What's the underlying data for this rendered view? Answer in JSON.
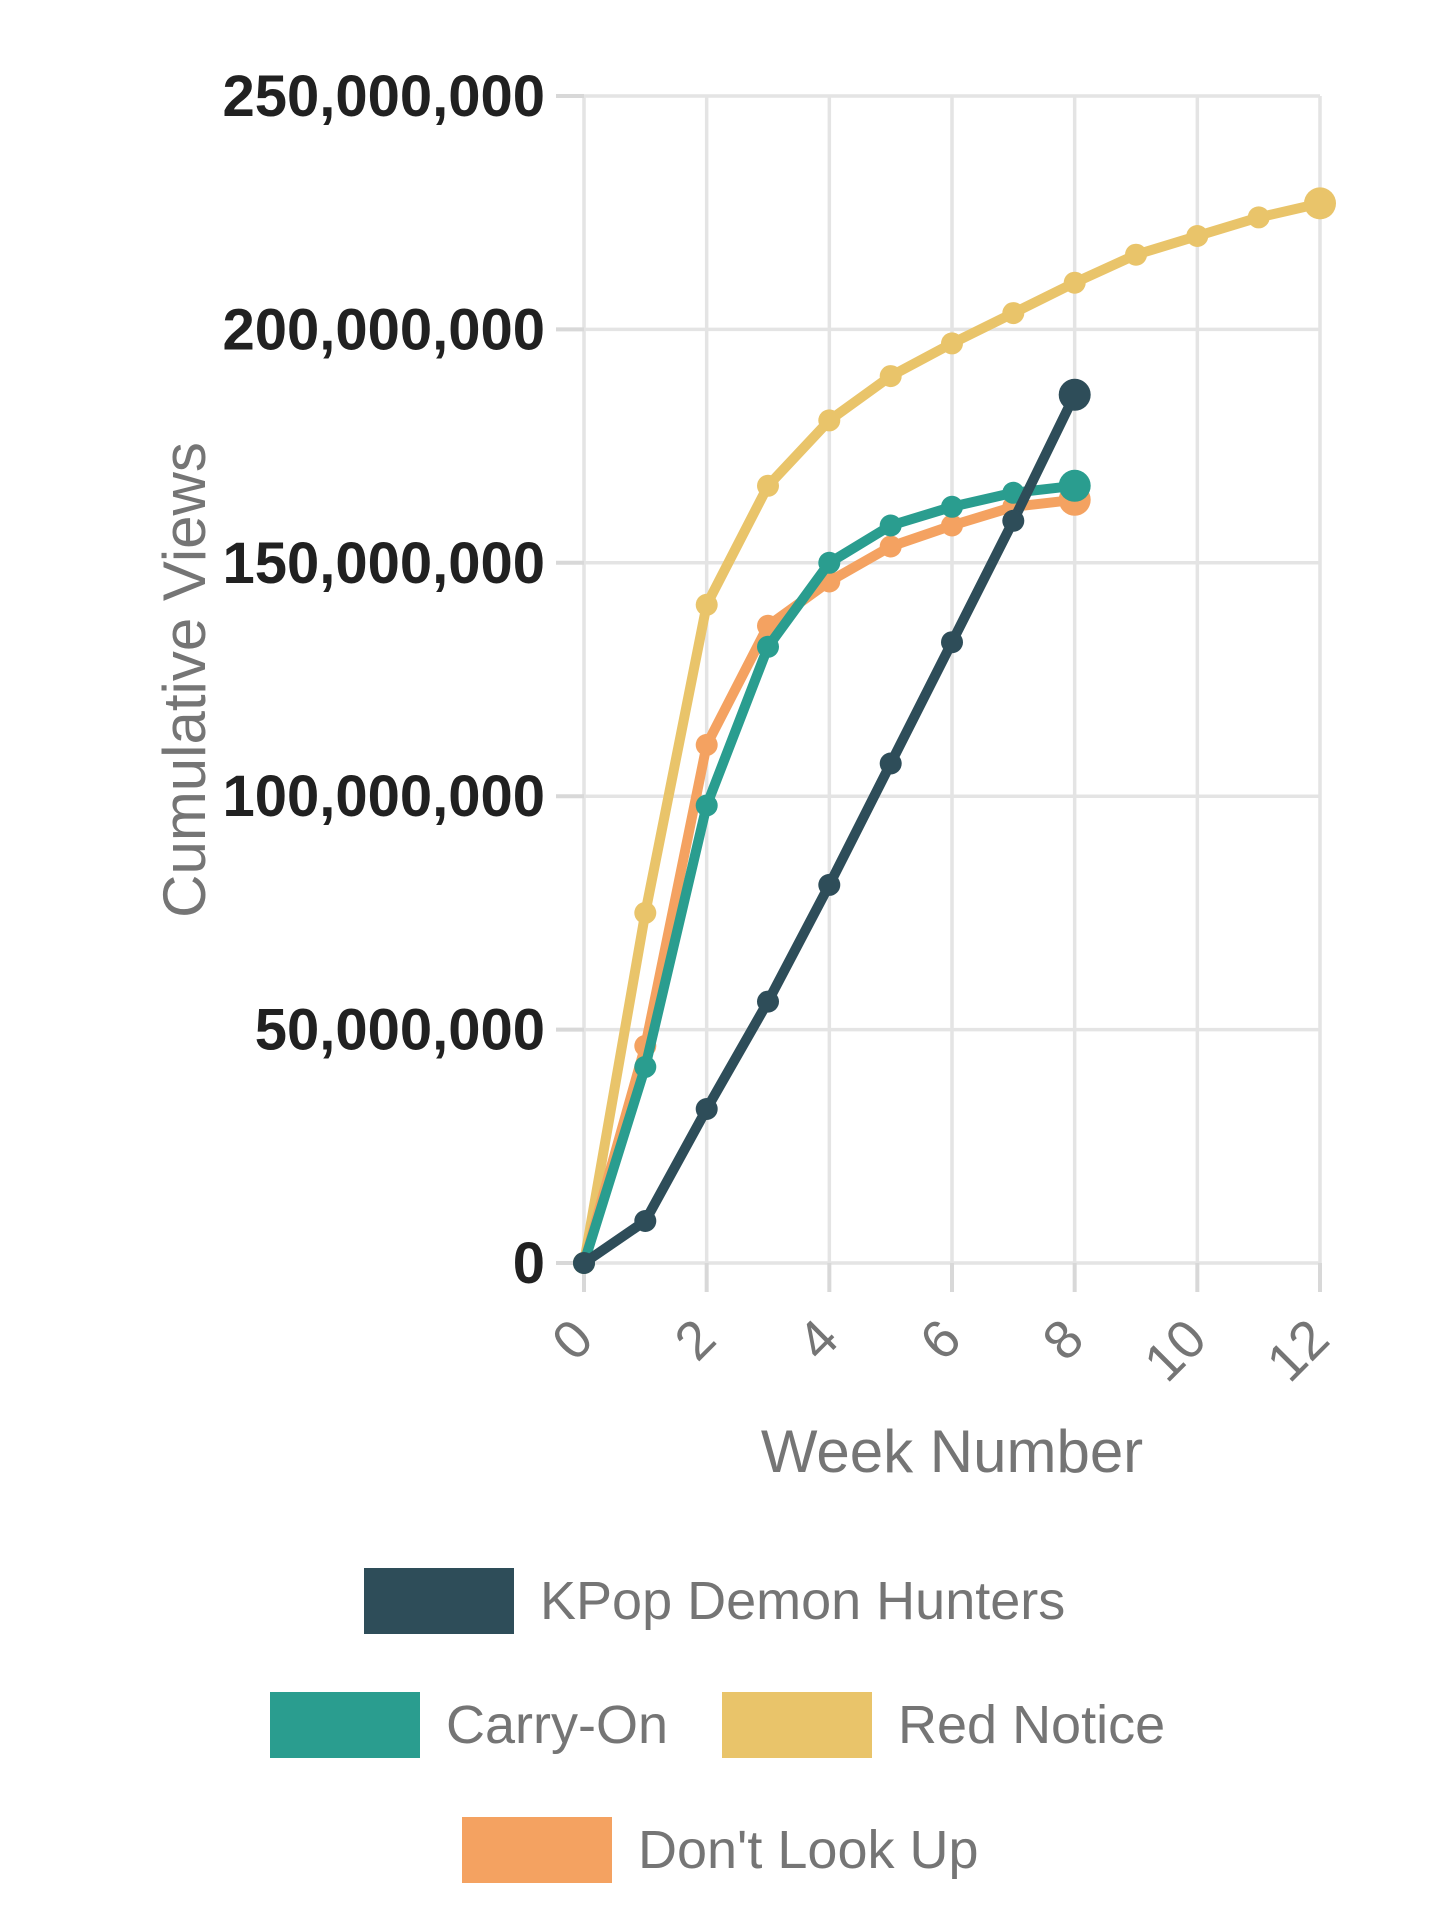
{
  "chart_data": {
    "type": "line",
    "title": "",
    "xlabel": "Week Number",
    "ylabel": "Cumulative Views",
    "xlim": [
      0,
      12
    ],
    "ylim": [
      0,
      250000000
    ],
    "grid": true,
    "legend_position": "bottom",
    "x_ticks": [
      0,
      2,
      4,
      6,
      8,
      10,
      12
    ],
    "x_tick_labels": [
      "0",
      "2",
      "4",
      "6",
      "8",
      "10",
      "12"
    ],
    "y_ticks": [
      0,
      50000000,
      100000000,
      150000000,
      200000000,
      250000000
    ],
    "y_tick_labels": [
      "0",
      "50,000,000",
      "100,000,000",
      "150,000,000",
      "200,000,000",
      "250,000,000"
    ],
    "series": [
      {
        "name": "KPop Demon Hunters",
        "color": "#2e4d59",
        "x": [
          0,
          1,
          2,
          3,
          4,
          5,
          6,
          7,
          8
        ],
        "values": [
          0,
          9000000,
          33000000,
          56000000,
          81000000,
          107000000,
          133000000,
          159000000,
          186000000
        ]
      },
      {
        "name": "Carry-On",
        "color": "#2a9d8f",
        "x": [
          0,
          1,
          2,
          3,
          4,
          5,
          6,
          7,
          8
        ],
        "values": [
          0,
          42000000,
          98000000,
          132000000,
          150000000,
          158000000,
          162000000,
          165000000,
          166500000
        ]
      },
      {
        "name": "Red Notice",
        "color": "#e9c46a",
        "x": [
          0,
          1,
          2,
          3,
          4,
          5,
          6,
          7,
          8,
          9,
          10,
          11,
          12
        ],
        "values": [
          0,
          75000000,
          141000000,
          166500000,
          180500000,
          190000000,
          197000000,
          203500000,
          210000000,
          216000000,
          220000000,
          224000000,
          227000000
        ]
      },
      {
        "name": "Don't Look Up",
        "color": "#f4a261",
        "x": [
          0,
          1,
          2,
          3,
          4,
          5,
          6,
          7,
          8
        ],
        "values": [
          0,
          46500000,
          111000000,
          136500000,
          146000000,
          153500000,
          158000000,
          162000000,
          163500000
        ]
      }
    ],
    "colors": {
      "background": "#ffffff",
      "gridline": "#e4e4e4",
      "tick": "#d8d8d8",
      "y_tick_label": "#212121",
      "x_tick_label": "#757575",
      "axis_title": "#757575",
      "legend_text": "#757575"
    }
  }
}
